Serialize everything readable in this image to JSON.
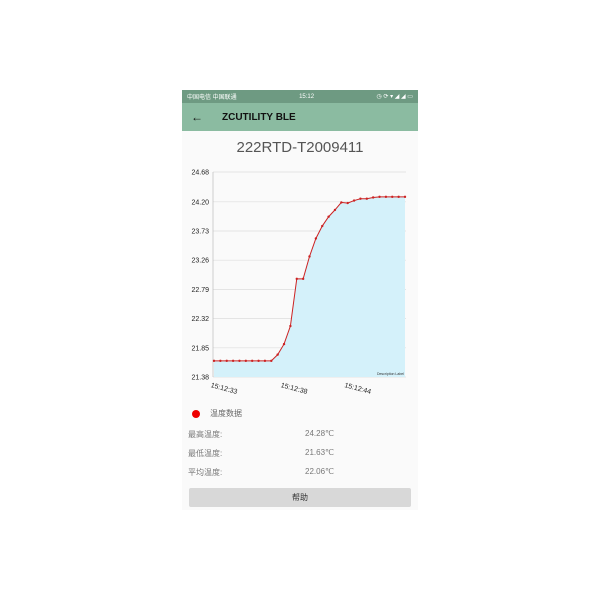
{
  "status_bar": {
    "carriers": "中国电信 中国联通",
    "time": "15:12",
    "icons": "alarm, sync, wifi, signal, signal, battery"
  },
  "toolbar": {
    "back_icon": "arrow-left-icon",
    "title": "ZCUTILITY BLE"
  },
  "device_name": "222RTD-T2009411",
  "chart_data": {
    "type": "area",
    "title": "",
    "y_ticks": [
      "21.38",
      "21.85",
      "22.32",
      "22.79",
      "23.26",
      "23.73",
      "24.20",
      "24.68"
    ],
    "ylim": [
      21.38,
      24.68
    ],
    "x_tick_labels": [
      {
        "index": 1,
        "label": "15:12:33"
      },
      {
        "index": 12,
        "label": "15:12:38"
      },
      {
        "index": 22,
        "label": "15:12:44"
      }
    ],
    "values": [
      21.64,
      21.64,
      21.64,
      21.64,
      21.64,
      21.64,
      21.64,
      21.64,
      21.64,
      21.64,
      21.74,
      21.91,
      22.2,
      22.96,
      22.96,
      23.32,
      23.61,
      23.81,
      23.96,
      24.07,
      24.19,
      24.18,
      24.22,
      24.25,
      24.25,
      24.27,
      24.28,
      24.28,
      24.28,
      24.28,
      24.28
    ],
    "line_color": "#cc2222",
    "fill_color": "#d4f1fa",
    "grid": true,
    "description_label": "Description Label",
    "legend": {
      "label": "温度数据",
      "color": "#e00000",
      "placement": "bottom-left"
    }
  },
  "stats": [
    {
      "label": "最高温度:",
      "value": "24.28℃"
    },
    {
      "label": "最低温度:",
      "value": "21.63℃"
    },
    {
      "label": "平均温度:",
      "value": "22.06℃"
    }
  ],
  "help_button": "帮助"
}
